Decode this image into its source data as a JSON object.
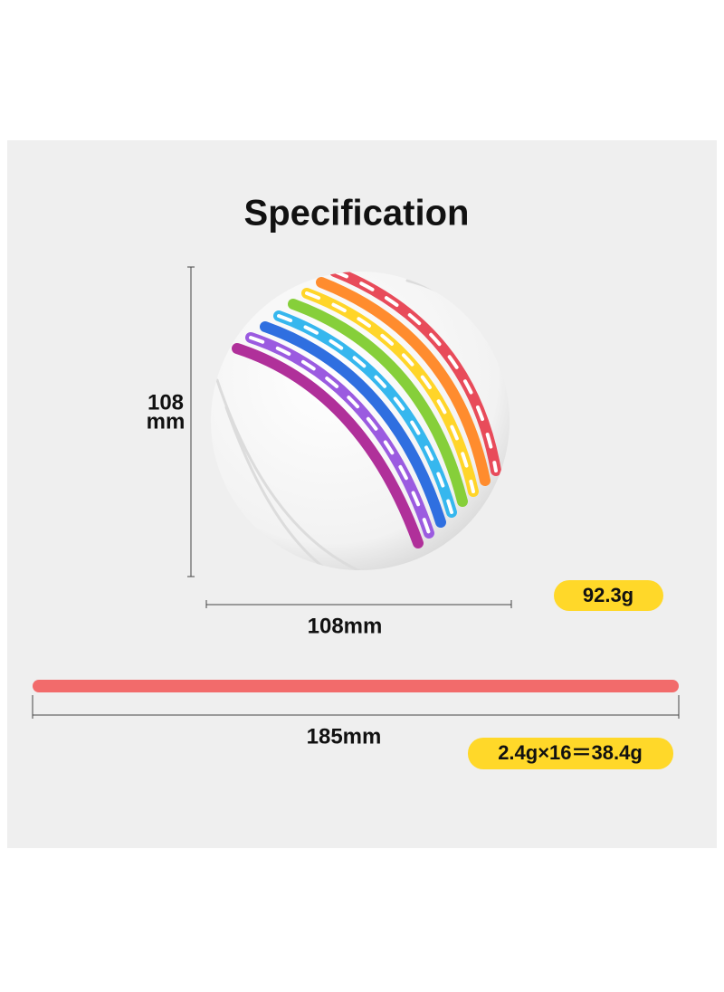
{
  "title": "Specification",
  "ball": {
    "height_number": "108",
    "height_unit": "mm",
    "width": "108mm",
    "weight": "92.3g"
  },
  "strip": {
    "length": "185mm",
    "weight": "2.4g×16＝38.4g"
  }
}
